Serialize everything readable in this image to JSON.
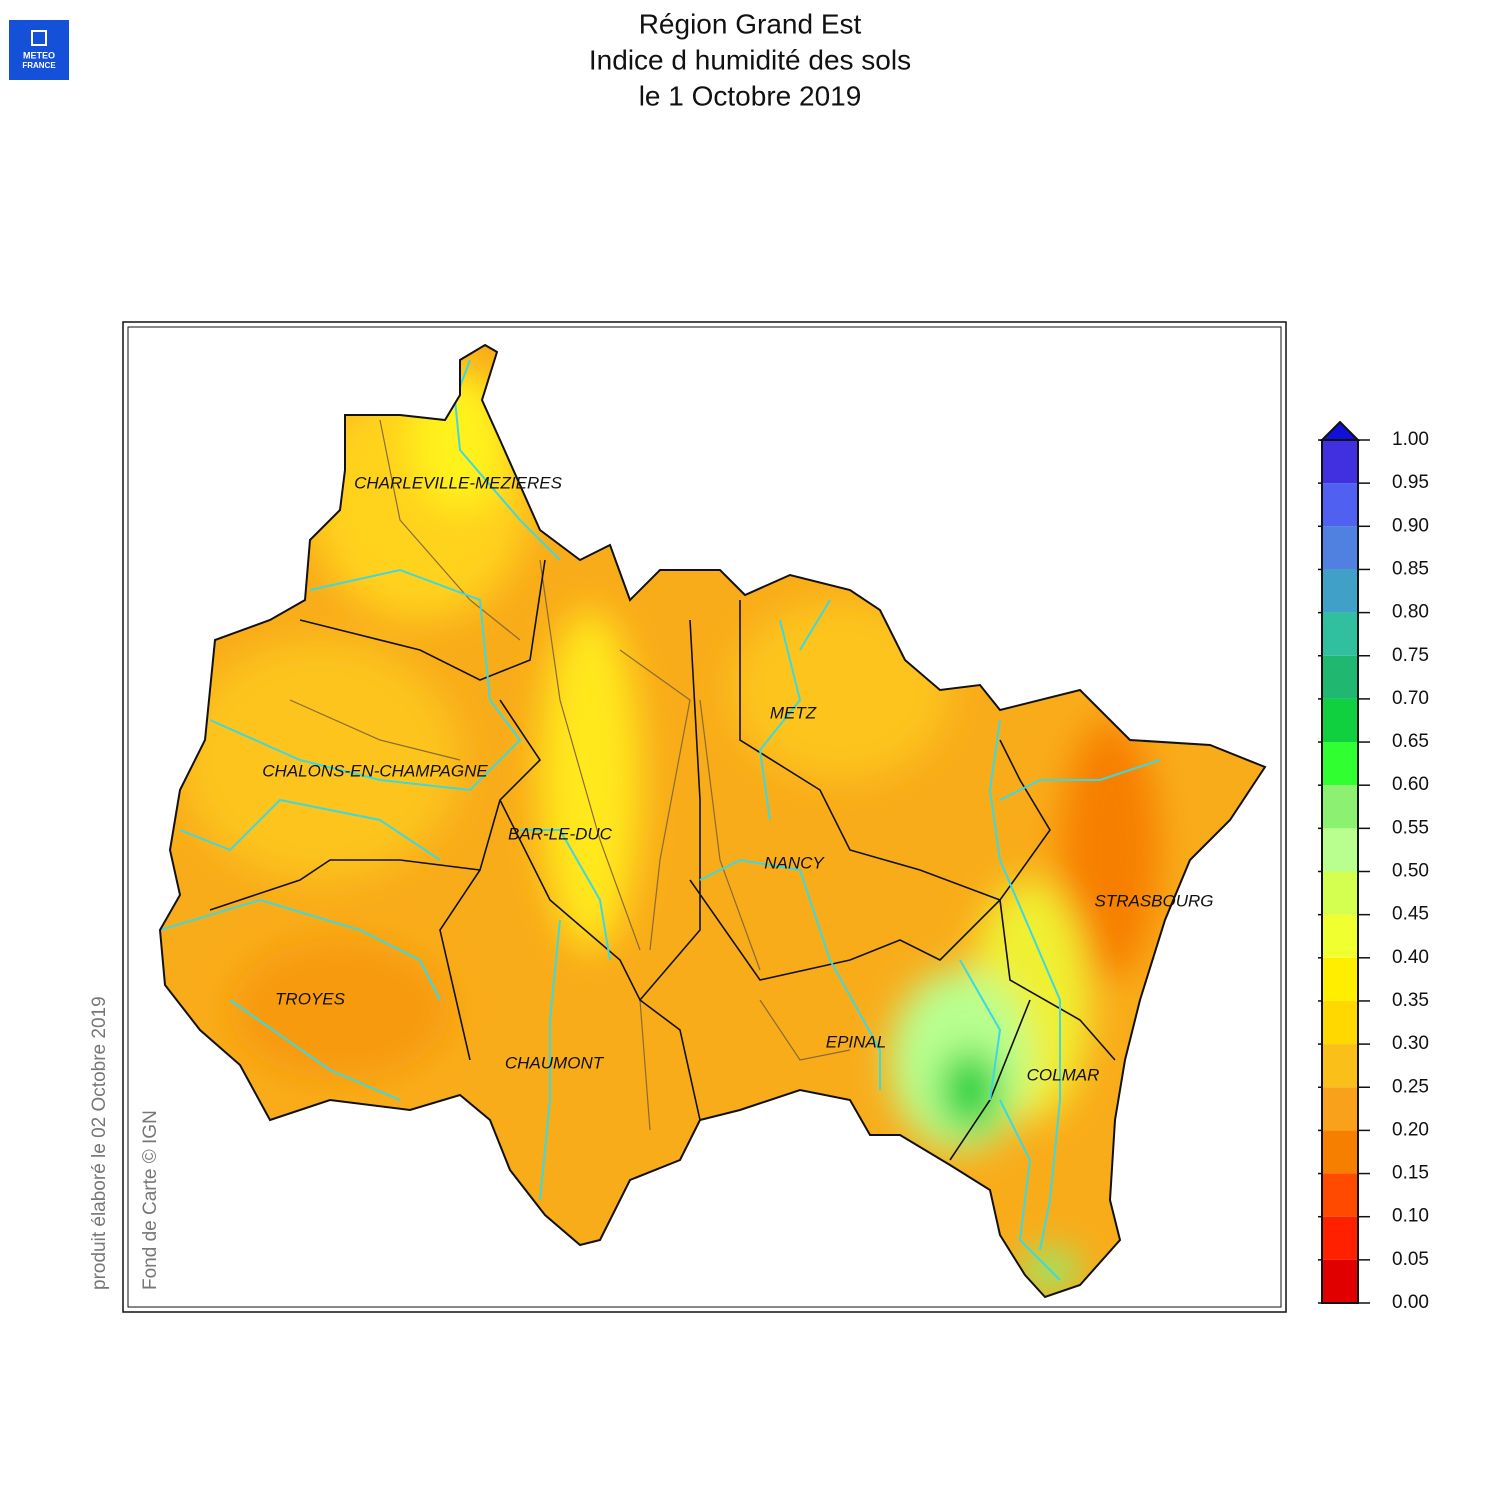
{
  "logo": {
    "line1": "METEO",
    "line2": "FRANCE"
  },
  "title": [
    "Région Grand Est",
    "Indice d humidité des sols",
    "le 1 Octobre 2019"
  ],
  "cities": [
    "CHARLEVILLE-MEZIERES",
    "CHALONS-EN-CHAMPAGNE",
    "BAR-LE-DUC",
    "METZ",
    "NANCY",
    "STRASBOURG",
    "TROYES",
    "CHAUMONT",
    "EPINAL",
    "COLMAR"
  ],
  "side_notes": [
    "produit élaboré le 02 Octobre 2019",
    "Fond de Carte © IGN"
  ],
  "legend": {
    "ticks": [
      {
        "value": 0,
        "label": "0.00"
      },
      {
        "value": 0.05,
        "label": "0.05"
      },
      {
        "value": 0.1,
        "label": "0.10"
      },
      {
        "value": 0.15,
        "label": "0.15"
      },
      {
        "value": 0.2,
        "label": "0.20"
      },
      {
        "value": 0.25,
        "label": "0.25"
      },
      {
        "value": 0.3,
        "label": "0.30"
      },
      {
        "value": 0.35,
        "label": "0.35"
      },
      {
        "value": 0.4,
        "label": "0.40"
      },
      {
        "value": 0.45,
        "label": "0.45"
      },
      {
        "value": 0.5,
        "label": "0.50"
      },
      {
        "value": 0.55,
        "label": "0.55"
      },
      {
        "value": 0.6,
        "label": "0.60"
      },
      {
        "value": 0.65,
        "label": "0.65"
      },
      {
        "value": 0.7,
        "label": "0.70"
      },
      {
        "value": 0.75,
        "label": "0.75"
      },
      {
        "value": 0.8,
        "label": "0.80"
      },
      {
        "value": 0.85,
        "label": "0.85"
      },
      {
        "value": 0.9,
        "label": "0.90"
      },
      {
        "value": 0.95,
        "label": "0.95"
      },
      {
        "value": 1,
        "label": "1.00"
      }
    ],
    "colors": [
      "#e00000",
      "#ff2000",
      "#ff4a00",
      "#f77f00",
      "#f9a11b",
      "#fbbf1a",
      "#ffd800",
      "#ffee00",
      "#f0ff30",
      "#d4ff50",
      "#b8ff90",
      "#8cf070",
      "#30ff30",
      "#10d040",
      "#20b870",
      "#30c0a0",
      "#40a0c8",
      "#5080e0",
      "#5060f0",
      "#4030e0"
    ],
    "over_color": "#1010d8"
  }
}
